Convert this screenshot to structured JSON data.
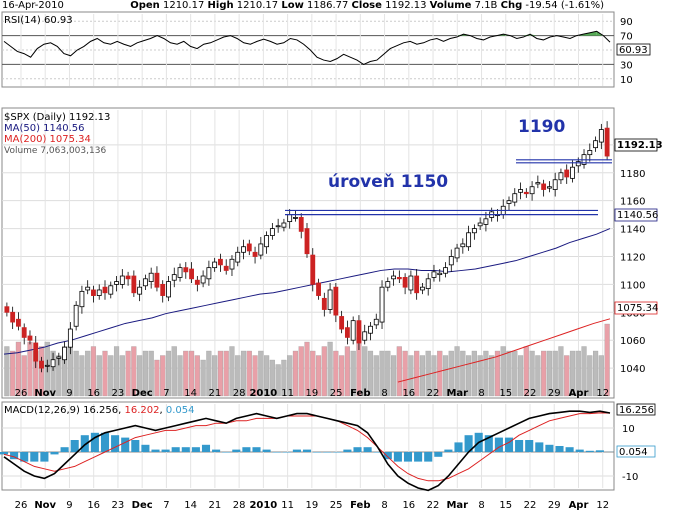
{
  "header": {
    "date": "16-Apr-2010",
    "open_label": "Open",
    "open": "1210.17",
    "high_label": "High",
    "high": "1210.17",
    "low_label": "Low",
    "low": "1186.77",
    "close_label": "Close",
    "close": "1192.13",
    "volume_label": "Volume",
    "volume": "7.1B",
    "chg_label": "Chg",
    "chg": "-19.54 (-1.61%)"
  },
  "chart_data": [
    {
      "type": "line",
      "title": "RSI(14) 60.93",
      "series": [
        {
          "name": "RSI(14)",
          "last": "60.93",
          "values": [
            62,
            55,
            48,
            45,
            40,
            52,
            58,
            60,
            55,
            45,
            42,
            50,
            55,
            62,
            66,
            60,
            58,
            62,
            58,
            55,
            60,
            63,
            66,
            70,
            66,
            60,
            58,
            62,
            55,
            52,
            58,
            60,
            64,
            68,
            70,
            66,
            60,
            58,
            62,
            65,
            62,
            58,
            60,
            66,
            64,
            58,
            50,
            40,
            36,
            34,
            38,
            44,
            40,
            36,
            30,
            34,
            36,
            44,
            52,
            56,
            60,
            62,
            58,
            60,
            64,
            66,
            62,
            66,
            68,
            72,
            70,
            66,
            64,
            68,
            70,
            72,
            70,
            66,
            68,
            72,
            66,
            64,
            68,
            70,
            68,
            66,
            70,
            72,
            74,
            76,
            70,
            60.93
          ]
        }
      ],
      "ylim": [
        0,
        100
      ],
      "yticks": [
        "90",
        "70",
        "50",
        "30",
        "10"
      ],
      "ytick_values": [
        90,
        70,
        50,
        30,
        10
      ],
      "last_label": "60.93",
      "grid": true
    },
    {
      "type": "candlestick",
      "title": "$SPX (Daily) 1192.13",
      "legend": [
        {
          "text": "$SPX (Daily) 1192.13",
          "color": "#000000"
        },
        {
          "text": "MA(50) 1140.56",
          "color": "#1a1a80"
        },
        {
          "text": "MA(200) 1075.34",
          "color": "#dd2222"
        },
        {
          "text": "Volume 7,063,003,136",
          "color": "#555555"
        }
      ],
      "ylim": [
        1020,
        1225
      ],
      "yticks": [
        "1200",
        "1180",
        "1160",
        "1140",
        "1120",
        "1100",
        "1080",
        "1060",
        "1040"
      ],
      "ytick_values": [
        1200,
        1180,
        1160,
        1140,
        1120,
        1100,
        1080,
        1060,
        1040
      ],
      "last_price_label": "1192.13",
      "ma50_label": "1140.56",
      "ma200_label": "1075.34",
      "annotations": [
        {
          "text": "1190",
          "level": 1190,
          "color": "#2233aa"
        },
        {
          "text": "úroveň 1150",
          "level": 1150,
          "color": "#2233aa"
        }
      ],
      "close": [
        1080,
        1073,
        1070,
        1062,
        1060,
        1045,
        1040,
        1042,
        1046,
        1048,
        1055,
        1068,
        1085,
        1095,
        1098,
        1092,
        1096,
        1094,
        1099,
        1102,
        1106,
        1104,
        1094,
        1098,
        1104,
        1108,
        1098,
        1092,
        1102,
        1107,
        1112,
        1109,
        1104,
        1100,
        1106,
        1112,
        1116,
        1114,
        1110,
        1118,
        1123,
        1127,
        1124,
        1120,
        1129,
        1135,
        1140,
        1142,
        1144,
        1150,
        1148,
        1138,
        1122,
        1100,
        1092,
        1082,
        1096,
        1078,
        1068,
        1062,
        1074,
        1058,
        1066,
        1070,
        1075,
        1098,
        1102,
        1106,
        1104,
        1098,
        1106,
        1094,
        1098,
        1104,
        1109,
        1108,
        1112,
        1120,
        1126,
        1129,
        1137,
        1140,
        1144,
        1147,
        1152,
        1150,
        1156,
        1160,
        1165,
        1168,
        1165,
        1170,
        1173,
        1168,
        1170,
        1175,
        1180,
        1177,
        1184,
        1188,
        1193,
        1196,
        1203,
        1211,
        1192
      ],
      "volume": [
        0.55,
        0.5,
        0.6,
        0.45,
        0.6,
        0.5,
        0.55,
        0.6,
        0.5,
        0.45,
        0.55,
        0.55,
        0.5,
        0.45,
        0.5,
        0.55,
        0.45,
        0.5,
        0.45,
        0.55,
        0.45,
        0.5,
        0.55,
        0.45,
        0.5,
        0.5,
        0.4,
        0.45,
        0.5,
        0.55,
        0.45,
        0.5,
        0.5,
        0.45,
        0.4,
        0.5,
        0.45,
        0.5,
        0.5,
        0.55,
        0.45,
        0.5,
        0.5,
        0.45,
        0.5,
        0.45,
        0.4,
        0.35,
        0.4,
        0.45,
        0.5,
        0.55,
        0.6,
        0.5,
        0.45,
        0.55,
        0.6,
        0.5,
        0.45,
        0.55,
        0.5,
        0.65,
        0.55,
        0.5,
        0.45,
        0.5,
        0.5,
        0.45,
        0.55,
        0.5,
        0.45,
        0.5,
        0.45,
        0.5,
        0.45,
        0.5,
        0.45,
        0.5,
        0.55,
        0.5,
        0.45,
        0.5,
        0.45,
        0.5,
        0.45,
        0.5,
        0.55,
        0.5,
        0.5,
        0.45,
        0.55,
        0.5,
        0.45,
        0.5,
        0.5,
        0.5,
        0.55,
        0.45,
        0.5,
        0.5,
        0.55,
        0.45,
        0.5,
        0.45,
        0.8
      ],
      "ma50": [
        1050,
        1051,
        1053,
        1055,
        1058,
        1060,
        1063,
        1066,
        1069,
        1072,
        1074,
        1076,
        1079,
        1081,
        1083,
        1085,
        1087,
        1089,
        1091,
        1093,
        1094,
        1096,
        1098,
        1100,
        1102,
        1104,
        1106,
        1108,
        1110,
        1111,
        1111,
        1110,
        1110,
        1109,
        1110,
        1111,
        1113,
        1115,
        1117,
        1120,
        1123,
        1126,
        1130,
        1133,
        1136,
        1140
      ],
      "ma200": [
        1030,
        1033,
        1036,
        1039,
        1042,
        1045,
        1048,
        1052,
        1056,
        1060,
        1064,
        1068,
        1072,
        1075.34
      ],
      "grid": true
    },
    {
      "type": "line",
      "title": "MACD(12,26,9) 16.256, 16.202, 0.054",
      "title_parts": [
        {
          "text": "MACD(12,26,9) ",
          "color": "#000000"
        },
        {
          "text": "16.256",
          "color": "#000000"
        },
        {
          "text": ", ",
          "color": "#000000"
        },
        {
          "text": "16.202",
          "color": "#dd2222"
        },
        {
          "text": ", ",
          "color": "#000000"
        },
        {
          "text": "0.054",
          "color": "#3399cc"
        }
      ],
      "ylim": [
        -15,
        20
      ],
      "yticks": [
        "10",
        "0",
        "-10"
      ],
      "ytick_values": [
        10,
        0,
        -10
      ],
      "right_labels": [
        "16.256",
        "0.054"
      ],
      "macd": [
        -2,
        -5,
        -8,
        -10,
        -11,
        -9,
        -5,
        -1,
        3,
        6,
        8,
        9,
        10,
        11,
        10,
        9,
        10,
        11,
        12,
        13,
        14,
        13,
        12,
        14,
        15,
        16,
        15,
        14,
        15,
        16,
        16,
        15,
        14,
        13,
        12,
        11,
        8,
        2,
        -5,
        -10,
        -13,
        -15,
        -16,
        -14,
        -10,
        -5,
        0,
        4,
        6,
        8,
        10,
        12,
        14,
        15,
        16,
        16.5,
        17,
        17,
        16.5,
        17,
        16.256
      ],
      "signal": [
        -1,
        -2,
        -4,
        -6,
        -7,
        -8,
        -7,
        -6,
        -4,
        -2,
        0,
        2,
        4,
        6,
        7,
        8,
        9,
        9,
        10,
        11,
        11,
        12,
        12,
        13,
        13,
        14,
        14,
        14,
        15,
        15,
        15,
        15,
        14,
        13,
        11,
        9,
        6,
        2,
        -2,
        -6,
        -9,
        -11,
        -12,
        -12,
        -11,
        -9,
        -7,
        -4,
        -1,
        2,
        4,
        7,
        9,
        11,
        13,
        14,
        15,
        16,
        16,
        16.3,
        16.202
      ],
      "histogram": [
        -1,
        -3,
        -4,
        -4,
        -4,
        -1,
        2,
        5,
        7,
        8,
        8,
        7,
        6,
        5,
        3,
        1,
        1,
        2,
        2,
        2,
        3,
        1,
        0,
        1,
        2,
        2,
        1,
        0,
        0,
        1,
        1,
        0,
        0,
        0,
        1,
        2,
        2,
        0,
        -3,
        -4,
        -4,
        -4,
        -4,
        -2,
        1,
        4,
        7,
        8,
        7,
        6,
        6,
        5,
        5,
        4,
        3,
        2.5,
        2,
        1,
        0.5,
        0.7,
        0.054
      ]
    }
  ],
  "x_axis_labels": [
    "26",
    "Nov",
    "9",
    "16",
    "23",
    "Dec",
    "7",
    "14",
    "21",
    "28",
    "2010",
    "11",
    "19",
    "25",
    "Feb",
    "8",
    "16",
    "22",
    "Mar",
    "8",
    "15",
    "22",
    "29",
    "Apr",
    "12"
  ],
  "x_axis_bold": [
    "Nov",
    "Dec",
    "2010",
    "Feb",
    "Mar",
    "Apr"
  ],
  "colors": {
    "up": "#ffffff",
    "down": "#cc2222",
    "outline": "#000000",
    "ma50": "#1a1a80",
    "ma200": "#dd2222",
    "vol_up": "#bbbbbb",
    "vol_down": "#e8a0a8",
    "rsi_fill": "#55aa55",
    "annotation": "#2233aa",
    "macd": "#000000",
    "signal": "#dd2222",
    "hist": "#3399cc"
  }
}
